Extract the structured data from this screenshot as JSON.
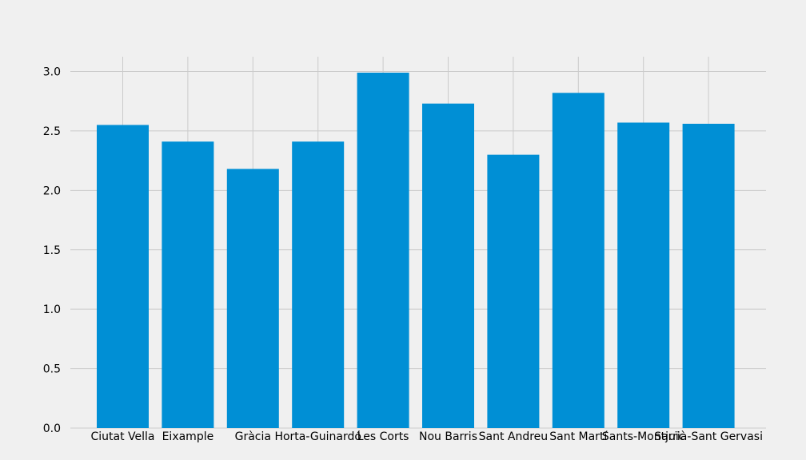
{
  "chart_data": {
    "type": "bar",
    "categories": [
      "Ciutat Vella",
      "Eixample",
      "Gràcia",
      "Horta-Guinardó",
      "Les Corts",
      "Nou Barris",
      "Sant Andreu",
      "Sant Martí",
      "Sants-Montjuïc",
      "Sarrià-Sant Gervasi"
    ],
    "values": [
      2.55,
      2.41,
      2.18,
      2.41,
      2.99,
      2.73,
      2.3,
      2.82,
      2.57,
      2.56
    ],
    "yticks": [
      "0.0",
      "0.5",
      "1.0",
      "1.5",
      "2.0",
      "2.5",
      "3.0"
    ],
    "ylim": [
      0,
      3.12
    ],
    "grid": true,
    "colors": {
      "bar": "#008fd5",
      "background": "#f0f0f0",
      "grid": "#cbcbcb"
    }
  }
}
